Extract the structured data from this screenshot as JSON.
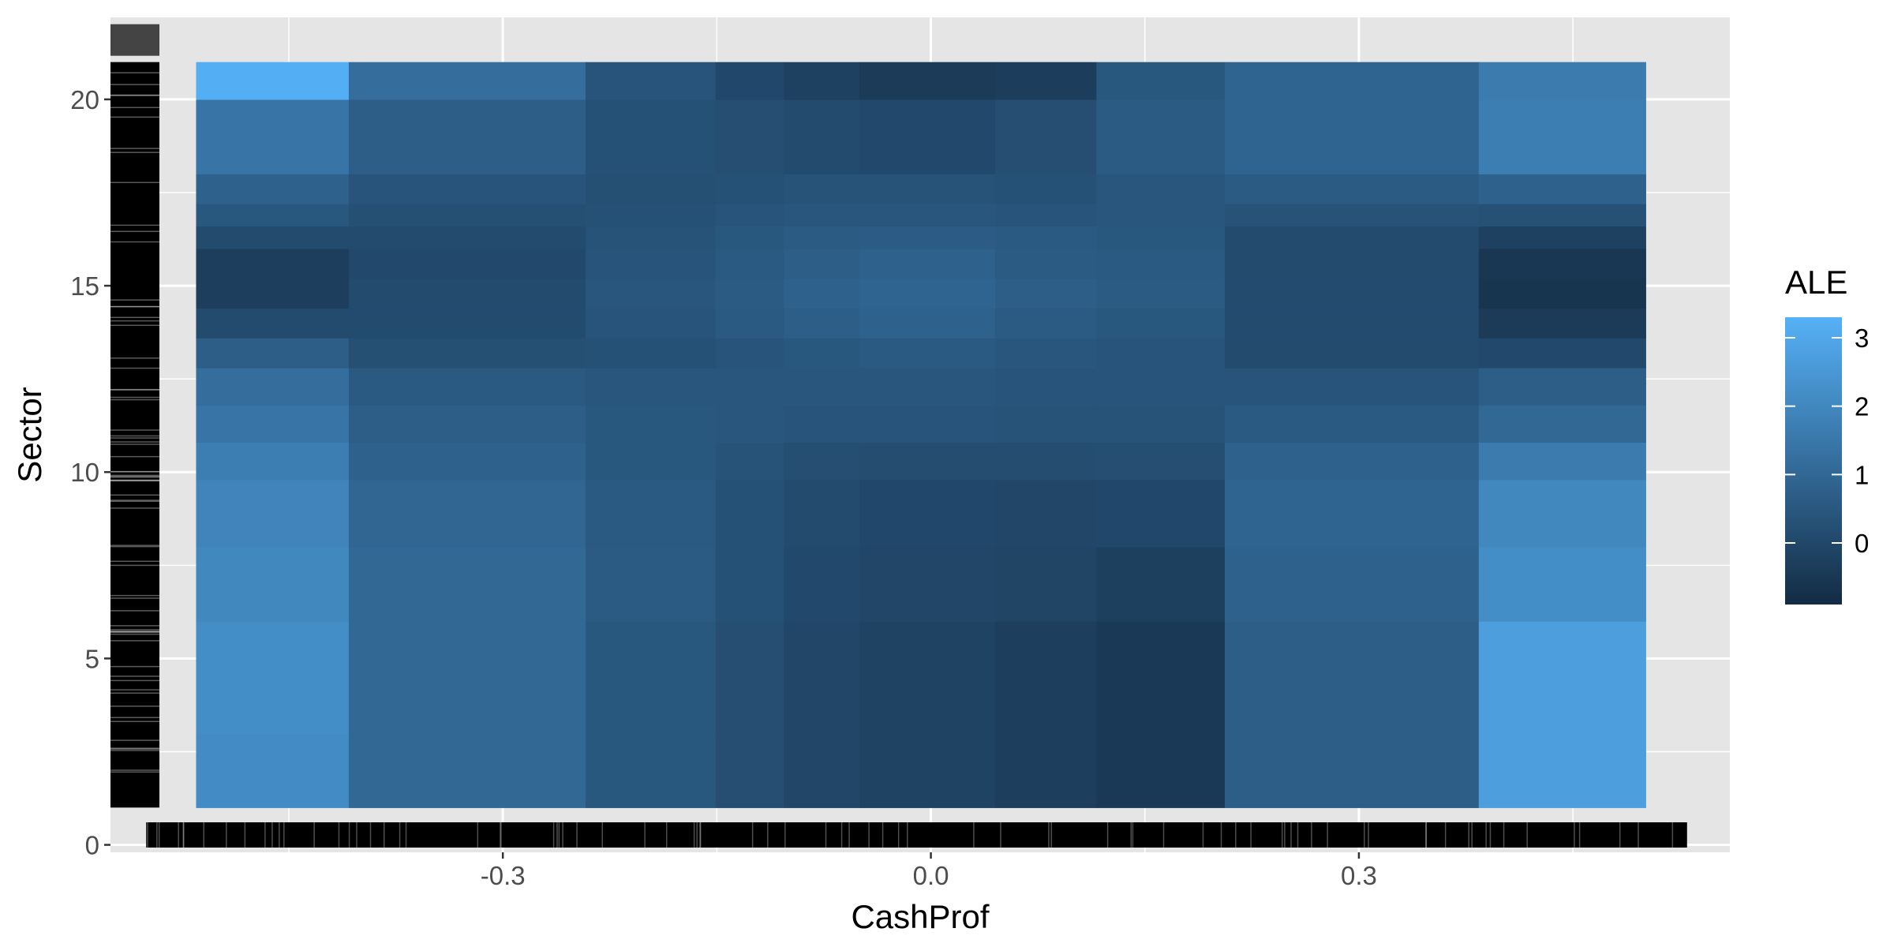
{
  "chart_data": {
    "type": "heatmap",
    "xlabel": "CashProf",
    "ylabel": "Sector",
    "legend_title": "ALE",
    "legend_position": "right",
    "grid": true,
    "x_ticks": [
      {
        "value": -0.3,
        "label": "-0.3"
      },
      {
        "value": 0.0,
        "label": "0.0"
      },
      {
        "value": 0.3,
        "label": "0.3"
      }
    ],
    "y_ticks": [
      {
        "value": 0,
        "label": "0"
      },
      {
        "value": 5,
        "label": "5"
      },
      {
        "value": 10,
        "label": "10"
      },
      {
        "value": 15,
        "label": "15"
      },
      {
        "value": 20,
        "label": "20"
      }
    ],
    "xlim": [
      -0.575,
      0.56
    ],
    "ylim": [
      -0.2,
      22.2
    ],
    "x_breaks": [
      -0.515,
      -0.408,
      -0.242,
      -0.151,
      -0.103,
      -0.05,
      0.045,
      0.116,
      0.206,
      0.384,
      0.501
    ],
    "y_breaks": [
      1.0,
      3.0,
      6.0,
      8.0,
      9.8,
      10.8,
      11.8,
      12.8,
      13.6,
      14.4,
      15.2,
      16.0,
      16.6,
      17.2,
      18.0,
      20.0,
      21.0
    ],
    "ale_values": [
      [
        2.1,
        1.0,
        0.5,
        0.2,
        -0.05,
        -0.15,
        -0.3,
        -0.45,
        0.7,
        2.7
      ],
      [
        2.2,
        1.0,
        0.5,
        0.2,
        -0.05,
        -0.15,
        -0.3,
        -0.45,
        0.7,
        2.7
      ],
      [
        2.0,
        1.0,
        0.6,
        0.3,
        0.05,
        -0.05,
        -0.1,
        -0.25,
        0.8,
        2.2
      ],
      [
        1.9,
        0.95,
        0.55,
        0.3,
        0.1,
        0.0,
        -0.05,
        0.0,
        0.9,
        2.0
      ],
      [
        1.7,
        0.8,
        0.5,
        0.35,
        0.2,
        0.15,
        0.15,
        0.2,
        0.8,
        1.6
      ],
      [
        1.4,
        0.7,
        0.5,
        0.45,
        0.4,
        0.4,
        0.35,
        0.35,
        0.55,
        1.0
      ],
      [
        1.2,
        0.55,
        0.45,
        0.45,
        0.45,
        0.45,
        0.4,
        0.4,
        0.4,
        0.7
      ],
      [
        0.7,
        0.25,
        0.3,
        0.4,
        0.5,
        0.55,
        0.45,
        0.4,
        0.1,
        0.05
      ],
      [
        0.1,
        0.1,
        0.4,
        0.55,
        0.7,
        0.8,
        0.6,
        0.5,
        0.1,
        -0.4
      ],
      [
        -0.3,
        0.1,
        0.45,
        0.6,
        0.8,
        0.9,
        0.7,
        0.6,
        0.1,
        -0.6
      ],
      [
        -0.3,
        0.05,
        0.4,
        0.55,
        0.7,
        0.8,
        0.6,
        0.55,
        0.1,
        -0.55
      ],
      [
        0.1,
        0.1,
        0.35,
        0.5,
        0.6,
        0.65,
        0.55,
        0.5,
        0.1,
        -0.2
      ],
      [
        0.5,
        0.25,
        0.3,
        0.4,
        0.45,
        0.45,
        0.4,
        0.45,
        0.35,
        0.3
      ],
      [
        0.8,
        0.4,
        0.25,
        0.3,
        0.35,
        0.35,
        0.3,
        0.45,
        0.6,
        0.8
      ],
      [
        1.4,
        0.7,
        0.3,
        0.2,
        0.1,
        0.05,
        0.2,
        0.6,
        0.9,
        1.7
      ],
      [
        3.2,
        1.2,
        0.4,
        0.0,
        -0.2,
        -0.4,
        -0.35,
        0.5,
        0.9,
        1.6
      ]
    ],
    "colorbar": {
      "min": -0.9,
      "max": 3.3,
      "low_color": "#132b43",
      "high_color": "#56b1f7",
      "ticks": [
        0,
        1,
        2,
        3
      ]
    },
    "rug_x_range": [
      -0.55,
      0.53
    ],
    "rug_y_range": [
      1.0,
      21.0
    ],
    "panel_background": "#e5e5e5",
    "grid_color": "#ffffff"
  }
}
